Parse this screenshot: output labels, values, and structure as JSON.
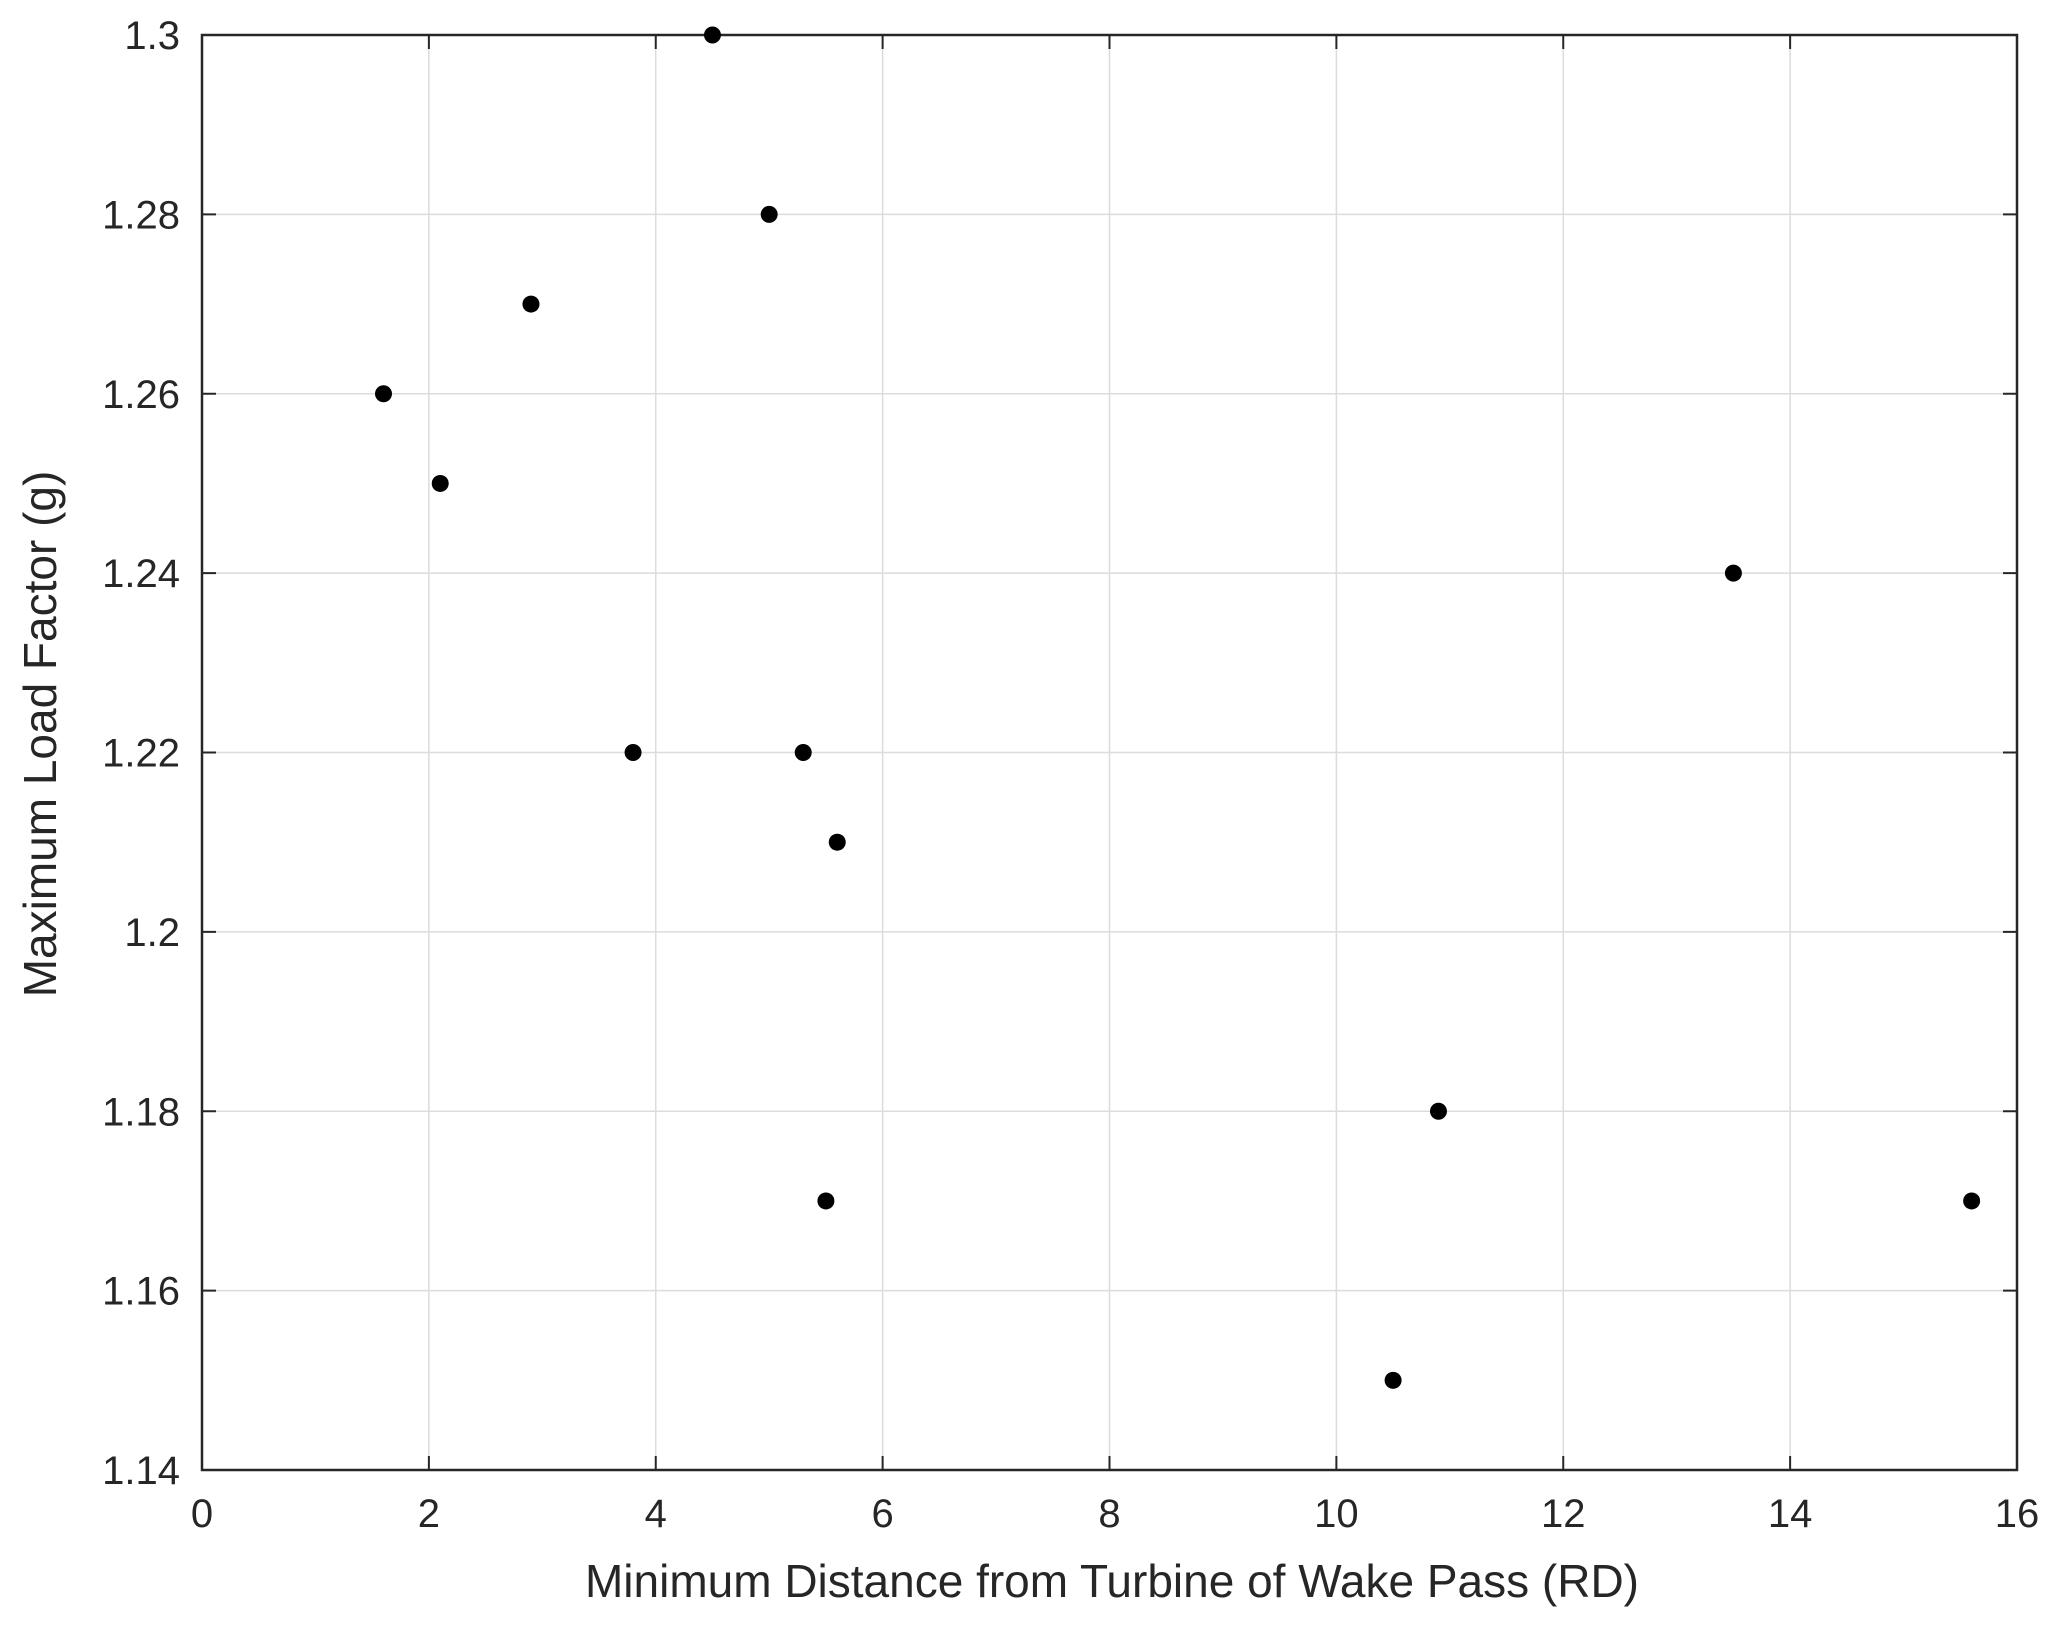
{
  "chart_data": {
    "type": "scatter",
    "xlabel": "Minimum Distance from Turbine of Wake Pass (RD)",
    "ylabel": "Maximum Load Factor (g)",
    "xlim": [
      0,
      16
    ],
    "ylim": [
      1.14,
      1.3
    ],
    "xticks": [
      "0",
      "2",
      "4",
      "6",
      "8",
      "10",
      "12",
      "14",
      "16"
    ],
    "yticks": [
      "1.14",
      "1.16",
      "1.18",
      "1.2",
      "1.22",
      "1.24",
      "1.26",
      "1.28",
      "1.3"
    ],
    "grid": true,
    "series": [
      {
        "marker_color": "#000000",
        "points": [
          {
            "x": 1.6,
            "y": 1.26
          },
          {
            "x": 2.1,
            "y": 1.25
          },
          {
            "x": 2.9,
            "y": 1.27
          },
          {
            "x": 3.8,
            "y": 1.22
          },
          {
            "x": 4.5,
            "y": 1.3
          },
          {
            "x": 5.0,
            "y": 1.28
          },
          {
            "x": 5.3,
            "y": 1.22
          },
          {
            "x": 5.5,
            "y": 1.17
          },
          {
            "x": 5.6,
            "y": 1.21
          },
          {
            "x": 10.5,
            "y": 1.15
          },
          {
            "x": 10.9,
            "y": 1.18
          },
          {
            "x": 13.5,
            "y": 1.24
          },
          {
            "x": 15.6,
            "y": 1.17
          }
        ]
      }
    ]
  }
}
